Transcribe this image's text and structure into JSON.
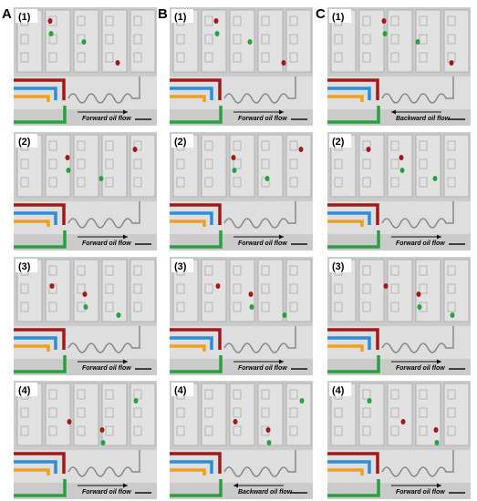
{
  "columns": [
    {
      "label": "A",
      "panels": [
        {
          "step": "(1)",
          "flow": "Forward oil flow"
        },
        {
          "step": "(2)",
          "flow": "Forward oil flow"
        },
        {
          "step": "(3)",
          "flow": "Forward oil flow"
        },
        {
          "step": "(4)",
          "flow": "Forward oil flow"
        }
      ]
    },
    {
      "label": "B",
      "panels": [
        {
          "step": "(1)",
          "flow": "Forward oil flow"
        },
        {
          "step": "(2)",
          "flow": "Forward oil flow"
        },
        {
          "step": "(3)",
          "flow": "Forward oil flow"
        },
        {
          "step": "(4)",
          "flow": "Backward oil flow"
        }
      ]
    },
    {
      "label": "C",
      "panels": [
        {
          "step": "(1)",
          "flow": "Backward oil flow"
        },
        {
          "step": "(2)",
          "flow": "Forward oil flow"
        },
        {
          "step": "(3)",
          "flow": "Forward oil flow"
        },
        {
          "step": "(4)",
          "flow": "Forward oil flow"
        }
      ]
    }
  ]
}
